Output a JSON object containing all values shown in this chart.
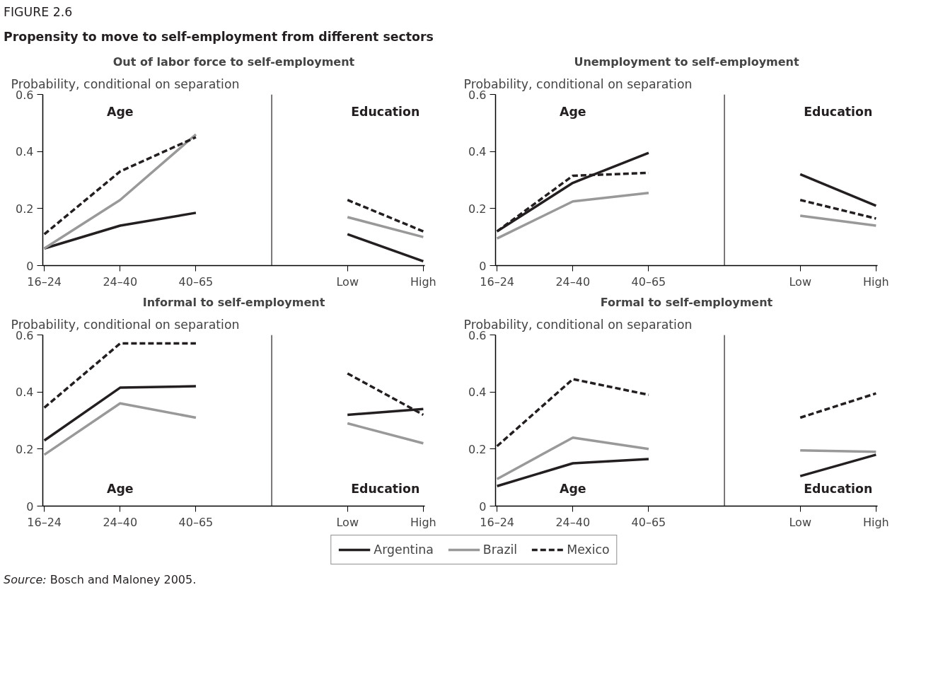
{
  "chart_data": [
    {
      "type": "line",
      "title": "Out of labor force to self-employment",
      "ylabel": "Probability, conditional on separation",
      "categories": [
        "16–24",
        "24–40",
        "40–65",
        null,
        "Low",
        "High"
      ],
      "ylim": [
        0,
        0.6
      ],
      "yticks": [
        0,
        0.2,
        0.4,
        0.6
      ],
      "legend": "bottom",
      "series": [
        {
          "name": "Argentina",
          "color": "#231f20",
          "line_style": "solid",
          "values": [
            0.06,
            0.14,
            0.185,
            null,
            0.11,
            0.015
          ]
        },
        {
          "name": "Brazil",
          "color": "#999999",
          "line_style": "solid",
          "values": [
            0.06,
            0.23,
            0.46,
            null,
            0.17,
            0.1
          ]
        },
        {
          "name": "Mexico",
          "color": "#231f20",
          "line_style": "dashed",
          "values": [
            0.11,
            0.33,
            0.45,
            null,
            0.23,
            0.12
          ]
        }
      ],
      "annotations": [
        "Age",
        "Education",
        "FIGURE 2.6",
        "Propensity to move to self-employment from different sectors"
      ]
    },
    {
      "type": "line",
      "title": "Unemployment to self-employment",
      "ylabel": "Probability, conditional on separation",
      "categories": [
        "16–24",
        "24–40",
        "40–65",
        null,
        "Low",
        "High"
      ],
      "ylim": [
        0,
        0.6
      ],
      "yticks": [
        0,
        0.2,
        0.4,
        0.6
      ],
      "series": [
        {
          "color": "#231f20",
          "line_style": "solid",
          "values": [
            0.12,
            0.29,
            0.395,
            null,
            0.32,
            0.21
          ]
        },
        {
          "color": "#999999",
          "line_style": "solid",
          "values": [
            0.095,
            0.225,
            0.255,
            null,
            0.175,
            0.14
          ]
        },
        {
          "color": "#231f20",
          "line_style": "dashed",
          "values": [
            0.12,
            0.315,
            0.325,
            null,
            0.23,
            0.165
          ]
        }
      ],
      "annotations": [
        "Age",
        "Education"
      ]
    },
    {
      "type": "line",
      "title": "Informal to self-employment",
      "ylabel": "Probability, conditional on separation",
      "categories": [
        "16–24",
        "24–40",
        "40–65",
        null,
        "Low",
        "High"
      ],
      "ylim": [
        0,
        0.6
      ],
      "yticks": [
        0,
        0.2,
        0.4,
        0.6
      ],
      "series": [
        {
          "color": "#231f20",
          "line_style": "solid",
          "values": [
            0.23,
            0.415,
            0.42,
            null,
            0.32,
            0.34
          ]
        },
        {
          "color": "#999999",
          "line_style": "solid",
          "values": [
            0.18,
            0.36,
            0.31,
            null,
            0.29,
            0.22
          ]
        },
        {
          "color": "#231f20",
          "line_style": "dashed",
          "values": [
            0.345,
            0.57,
            0.57,
            null,
            0.465,
            0.32
          ]
        }
      ],
      "annotations": [
        "Age",
        "Education"
      ]
    },
    {
      "type": "line",
      "title": "Formal to self-employment",
      "ylabel": "Probability, conditional on separation",
      "categories": [
        "16–24",
        "24–40",
        "40–65",
        null,
        "Low",
        "High"
      ],
      "ylim": [
        0,
        0.6
      ],
      "yticks": [
        0,
        0.2,
        0.4,
        0.6
      ],
      "series": [
        {
          "color": "#231f20",
          "line_style": "solid",
          "values": [
            0.07,
            0.15,
            0.165,
            null,
            0.105,
            0.18
          ]
        },
        {
          "color": "#999999",
          "line_style": "solid",
          "values": [
            0.095,
            0.24,
            0.2,
            null,
            0.195,
            0.19
          ]
        },
        {
          "color": "#231f20",
          "line_style": "dashed",
          "values": [
            0.21,
            0.445,
            0.39,
            null,
            0.31,
            0.395
          ]
        }
      ],
      "annotations": [
        "Age",
        "Education",
        "Source: Bosch and Maloney 2005."
      ]
    }
  ]
}
